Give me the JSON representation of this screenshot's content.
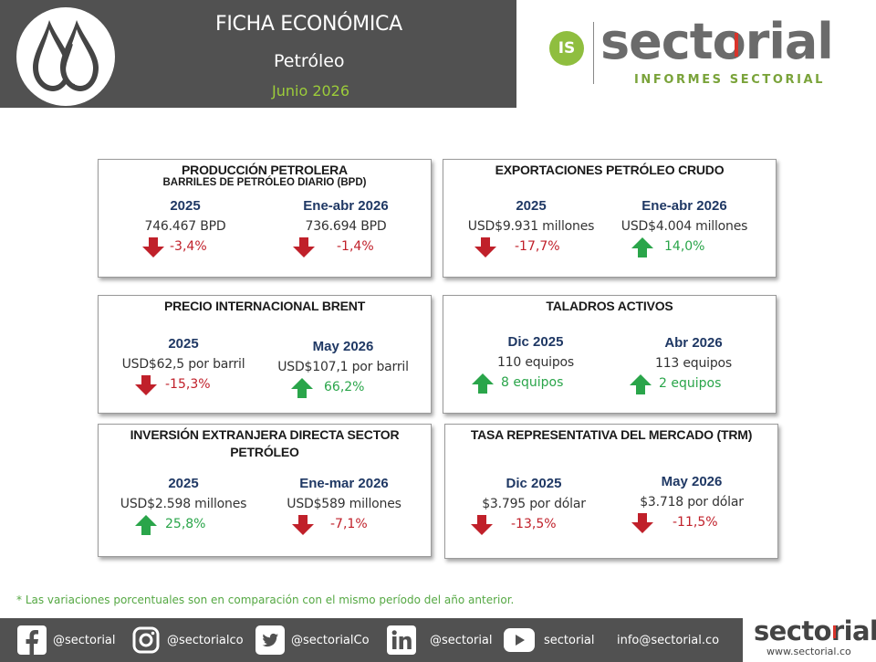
{
  "header": {
    "title": "FICHA ECONÓMICA",
    "subtitle": "Petróleo",
    "date": "Junio 2026",
    "logo_icon": "oil-drops-icon"
  },
  "brand": {
    "badge": "IS",
    "name": "sectorial",
    "tagline": "INFORMES SECTORIAL",
    "colors": {
      "green": "#8fbe3f",
      "red": "#d9342b",
      "gray": "#6b6b6b"
    }
  },
  "colors": {
    "negative": "#c0202a",
    "positive": "#2aa54a",
    "period": "#1f3864",
    "header_bg": "#515151"
  },
  "cards": {
    "produccion": {
      "title": "PRODUCCIÓN PETROLERA",
      "subtitle": "BARRILES DE PETRÓLEO DIARIO (BPD)",
      "left": {
        "period": "2025",
        "value": "746.467 BPD",
        "change": "-3,4%",
        "direction": "down"
      },
      "right": {
        "period": "Ene-abr 2026",
        "value": "736.694 BPD",
        "change": "-1,4%",
        "direction": "down"
      }
    },
    "exportaciones": {
      "title": "EXPORTACIONES PETRÓLEO CRUDO",
      "left": {
        "period": "2025",
        "value": "USD$9.931 millones",
        "change": "-17,7%",
        "direction": "down"
      },
      "right": {
        "period": "Ene-abr 2026",
        "value": "USD$4.004 millones",
        "change": "14,0%",
        "direction": "up"
      }
    },
    "brent": {
      "title": "PRECIO INTERNACIONAL BRENT",
      "left": {
        "period": "2025",
        "value": "USD$62,5 por barril",
        "change": "-15,3%",
        "direction": "down"
      },
      "right": {
        "period": "May 2026",
        "value": "USD$107,1 por barril",
        "change": "66,2%",
        "direction": "up"
      }
    },
    "taladros": {
      "title": "TALADROS ACTIVOS",
      "left": {
        "period": "Dic 2025",
        "value": "110 equipos",
        "change": "8 equipos",
        "direction": "up"
      },
      "right": {
        "period": "Abr 2026",
        "value": "113 equipos",
        "change": "2 equipos",
        "direction": "up"
      }
    },
    "ied": {
      "title": "INVERSIÓN EXTRANJERA DIRECTA SECTOR",
      "title2": "PETRÓLEO",
      "left": {
        "period": "2025",
        "value": "USD$2.598 millones",
        "change": "25,8%",
        "direction": "up"
      },
      "right": {
        "period": "Ene-mar 2026",
        "value": "USD$589 millones",
        "change": "-7,1%",
        "direction": "down"
      }
    },
    "trm": {
      "title": "TASA REPRESENTATIVA DEL MERCADO (TRM)",
      "left": {
        "period": "Dic 2025",
        "value": "$3.795 por dólar",
        "change": "-13,5%",
        "direction": "down"
      },
      "right": {
        "period": "May 2026",
        "value": "$3.718 por dólar",
        "change": "-11,5%",
        "direction": "down"
      }
    }
  },
  "footnote": "* Las variaciones porcentuales son en comparación con el mismo período del año anterior.",
  "footer": {
    "social": [
      {
        "icon": "facebook-icon",
        "label": "@sectorial"
      },
      {
        "icon": "instagram-icon",
        "label": "@sectorialco"
      },
      {
        "icon": "twitter-icon",
        "label": "@sectorialCo"
      },
      {
        "icon": "linkedin-icon",
        "label": "@sectorial"
      },
      {
        "icon": "youtube-icon",
        "label": "sectorial"
      },
      {
        "icon": "email",
        "label": "info@sectorial.co"
      }
    ],
    "logo_name": "sectorial",
    "logo_url": "www.sectorial.co"
  }
}
